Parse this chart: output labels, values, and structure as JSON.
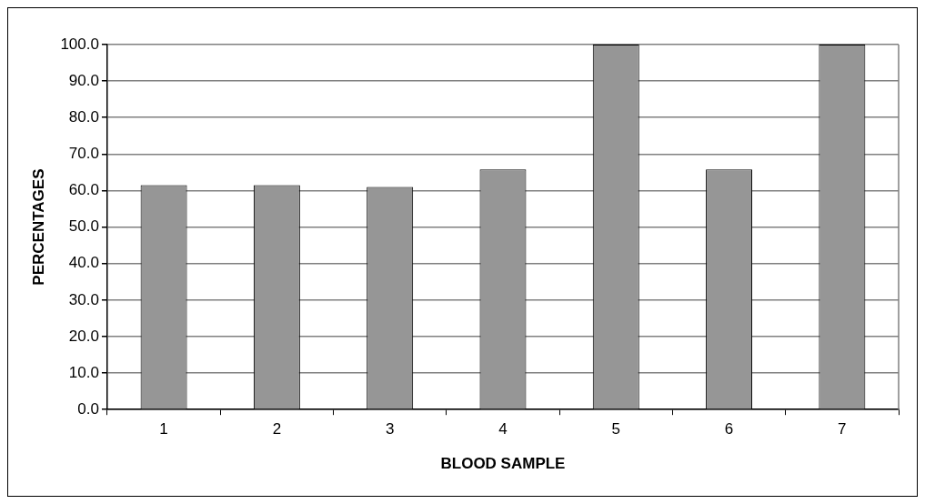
{
  "chart_data": {
    "type": "bar",
    "xlabel": "BLOOD SAMPLE",
    "ylabel": "PERCENTAGES",
    "categories": [
      "1",
      "2",
      "3",
      "4",
      "5",
      "6",
      "7"
    ],
    "values": [
      61.5,
      61.5,
      61.0,
      65.8,
      100.0,
      65.8,
      100.0
    ],
    "color": "#969696",
    "ylim": [
      0,
      100
    ],
    "yticks": [
      {
        "value": 0,
        "label": "0.0"
      },
      {
        "value": 10,
        "label": "10.0"
      },
      {
        "value": 20,
        "label": "20.0"
      },
      {
        "value": 30,
        "label": "30.0"
      },
      {
        "value": 40,
        "label": "40.0"
      },
      {
        "value": 50,
        "label": "50.0"
      },
      {
        "value": 60,
        "label": "60.0"
      },
      {
        "value": 70,
        "label": "70.0"
      },
      {
        "value": 80,
        "label": "80.0"
      },
      {
        "value": 90,
        "label": "90.0"
      },
      {
        "value": 100,
        "label": "100.0"
      }
    ],
    "grid": "y",
    "legend": false
  }
}
